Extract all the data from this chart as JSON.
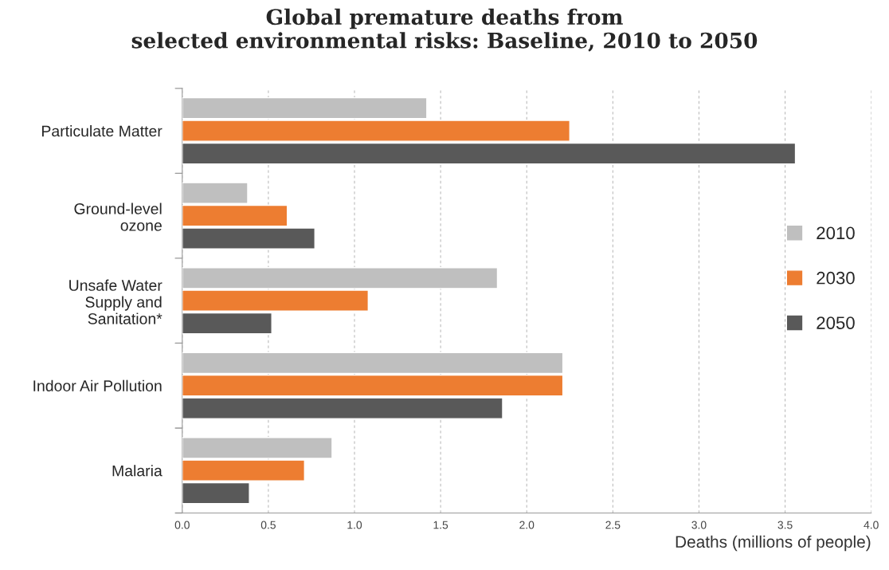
{
  "chart_data": {
    "type": "bar",
    "orientation": "horizontal",
    "title": "Global premature deaths from\nselected environmental risks: Baseline, 2010 to 2050",
    "xlabel": "Deaths (millions of people)",
    "categories": [
      "Particulate Matter",
      "Ground-level\nozone",
      "Unsafe Water\nSupply and\nSanitation*",
      "Indoor Air Pollution",
      "Malaria"
    ],
    "series": [
      {
        "name": "2010",
        "color": "#bfbfbf",
        "values": [
          1.42,
          0.38,
          1.83,
          2.21,
          0.87
        ]
      },
      {
        "name": "2030",
        "color": "#ed7d31",
        "values": [
          2.25,
          0.61,
          1.08,
          2.21,
          0.71
        ]
      },
      {
        "name": "2050",
        "color": "#595959",
        "values": [
          3.56,
          0.77,
          0.52,
          1.86,
          0.39
        ]
      }
    ],
    "xlim": [
      0,
      4
    ],
    "xticks": [
      {
        "value": 0,
        "label": "0.0"
      },
      {
        "value": 0.5,
        "label": "0.5"
      },
      {
        "value": 1,
        "label": "1.0"
      },
      {
        "value": 1.5,
        "label": "1.5"
      },
      {
        "value": 2,
        "label": "2.0"
      },
      {
        "value": 2.5,
        "label": "2.5"
      },
      {
        "value": 3,
        "label": "3.0"
      },
      {
        "value": 3.5,
        "label": "3.5"
      },
      {
        "value": 4,
        "label": "4.0"
      }
    ],
    "grid": "x",
    "legend": "right"
  }
}
